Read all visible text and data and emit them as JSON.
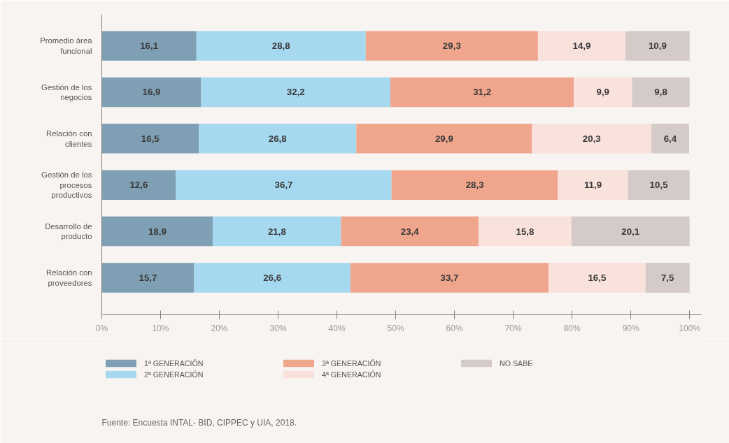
{
  "chart_data": {
    "type": "bar",
    "orientation": "horizontal",
    "stacked": true,
    "categories": [
      "Promedio área funcional",
      "Gestión de los negocios",
      "Relación con clientes",
      "Gestión de los procesos productivos",
      "Desarrollo de producto",
      "Relación con proveedores"
    ],
    "series": [
      {
        "name": "1ª GENERACIÓN",
        "color": "#7f9fb4",
        "values": [
          16.1,
          16.9,
          16.5,
          12.6,
          18.9,
          15.7
        ],
        "value_labels": [
          "16,1",
          "16,9",
          "16,5",
          "12,6",
          "18,9",
          "15,7"
        ]
      },
      {
        "name": "2ª GENERACIÓN",
        "color": "#a6d8ef",
        "values": [
          28.8,
          32.2,
          26.8,
          36.7,
          21.8,
          26.6
        ],
        "value_labels": [
          "28,8",
          "32,2",
          "26,8",
          "36,7",
          "21,8",
          "26,6"
        ]
      },
      {
        "name": "3ª GENERACIÓN",
        "color": "#f0a68d",
        "values": [
          29.3,
          31.2,
          29.9,
          28.3,
          23.4,
          33.7
        ],
        "value_labels": [
          "29,3",
          "31,2",
          "29,9",
          "28,3",
          "23,4",
          "33,7"
        ]
      },
      {
        "name": "4ª GENERACIÓN",
        "color": "#f9e1dc",
        "values": [
          14.9,
          9.9,
          20.3,
          11.9,
          15.8,
          16.5
        ],
        "value_labels": [
          "14,9",
          "9,9",
          "20,3",
          "11,9",
          "15,8",
          "16,5"
        ]
      },
      {
        "name": "NO SABE",
        "color": "#d4cbc8",
        "values": [
          10.9,
          9.8,
          6.4,
          10.5,
          20.1,
          7.5
        ],
        "value_labels": [
          "10,9",
          "9,8",
          "6,4",
          "10,5",
          "20,1",
          "7,5"
        ]
      }
    ],
    "xlim": [
      0,
      102
    ],
    "xticks": [
      {
        "value": 0,
        "label": "0%"
      },
      {
        "value": 10,
        "label": "10%"
      },
      {
        "value": 20,
        "label": "20%"
      },
      {
        "value": 30,
        "label": "30%"
      },
      {
        "value": 40,
        "label": "40%"
      },
      {
        "value": 50,
        "label": "50%"
      },
      {
        "value": 60,
        "label": "60%"
      },
      {
        "value": 70,
        "label": "70%"
      },
      {
        "value": 80,
        "label": "80%"
      },
      {
        "value": 90,
        "label": "90%"
      },
      {
        "value": 100,
        "label": "100%"
      }
    ],
    "legend": "bottom",
    "grid": false,
    "annotations": [
      "Fuente: Encuesta INTAL- BID, CIPPEC y UIA, 2018."
    ]
  }
}
